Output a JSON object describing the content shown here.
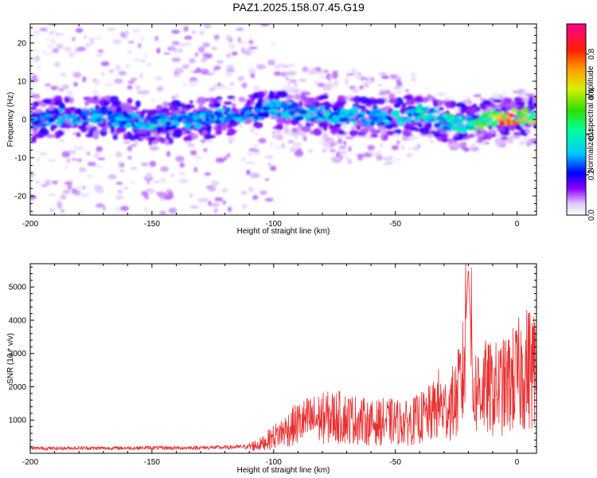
{
  "page": {
    "title": "PAZ1.2025.158.07.45.G19"
  },
  "chart_data": [
    {
      "type": "heatmap",
      "xlabel": "Height of straight line (km)",
      "ylabel": "Frequency (Hz)",
      "xlim": [
        -200,
        8
      ],
      "ylim": [
        -25,
        25
      ],
      "xticks": [
        -200,
        -150,
        -100,
        -50,
        0
      ],
      "yticks": [
        -20,
        -10,
        0,
        10,
        20
      ],
      "colorbar": {
        "label": "Normalized spectral amplitude",
        "range": [
          0,
          0.95
        ],
        "ticks": [
          0.0,
          0.2,
          0.4,
          0.6,
          0.8
        ]
      },
      "ridge": [
        {
          "x": -200,
          "f": -0.5,
          "amp": 0.28
        },
        {
          "x": -190,
          "f": 0.5,
          "amp": 0.3
        },
        {
          "x": -180,
          "f": 0.5,
          "amp": 0.3
        },
        {
          "x": -170,
          "f": 1.0,
          "amp": 0.3
        },
        {
          "x": -160,
          "f": 0.0,
          "amp": 0.32
        },
        {
          "x": -150,
          "f": -1.0,
          "amp": 0.35
        },
        {
          "x": -140,
          "f": -0.5,
          "amp": 0.32
        },
        {
          "x": -130,
          "f": 0.0,
          "amp": 0.32
        },
        {
          "x": -120,
          "f": 1.0,
          "amp": 0.33
        },
        {
          "x": -110,
          "f": 1.5,
          "amp": 0.3
        },
        {
          "x": -100,
          "f": 3.0,
          "amp": 0.32
        },
        {
          "x": -90,
          "f": 2.0,
          "amp": 0.33
        },
        {
          "x": -80,
          "f": 1.5,
          "amp": 0.35
        },
        {
          "x": -70,
          "f": 1.0,
          "amp": 0.34
        },
        {
          "x": -60,
          "f": 0.5,
          "amp": 0.33
        },
        {
          "x": -50,
          "f": 0.0,
          "amp": 0.35
        },
        {
          "x": -40,
          "f": 2.0,
          "amp": 0.4
        },
        {
          "x": -30,
          "f": -0.5,
          "amp": 0.42
        },
        {
          "x": -20,
          "f": -1.5,
          "amp": 0.45
        },
        {
          "x": -10,
          "f": 0.5,
          "amp": 0.6
        },
        {
          "x": -5,
          "f": 0.0,
          "amp": 0.85
        },
        {
          "x": 0,
          "f": 1.0,
          "amp": 0.7
        },
        {
          "x": 5,
          "f": 0.5,
          "amp": 0.65
        }
      ]
    },
    {
      "type": "line",
      "xlabel": "Height of straight line (km)",
      "ylabel": "SNR (10 * v/v)",
      "xlim": [
        -200,
        8
      ],
      "ylim": [
        0,
        5700
      ],
      "xticks": [
        -200,
        -150,
        -100,
        -50,
        0
      ],
      "yticks": [
        1000,
        2000,
        3000,
        4000,
        5000
      ],
      "color": "#e83030",
      "series": [
        {
          "x": [
            -200,
            -190,
            -180,
            -170,
            -160,
            -150,
            -140,
            -130,
            -120,
            -110,
            -105,
            -100,
            -95,
            -90,
            -85,
            -80,
            -75,
            -70,
            -65,
            -60,
            -55,
            -50,
            -45,
            -40,
            -35,
            -32,
            -30,
            -25,
            -22,
            -20,
            -18,
            -15,
            -10,
            -5,
            0,
            5,
            8
          ],
          "y": [
            150,
            150,
            160,
            155,
            160,
            165,
            160,
            170,
            175,
            200,
            280,
            500,
            700,
            900,
            1000,
            1050,
            1100,
            1050,
            1000,
            900,
            950,
            950,
            900,
            1050,
            1200,
            1500,
            1300,
            1600,
            2400,
            5600,
            1800,
            2000,
            1900,
            2000,
            2300,
            2600,
            2500
          ]
        }
      ]
    }
  ]
}
